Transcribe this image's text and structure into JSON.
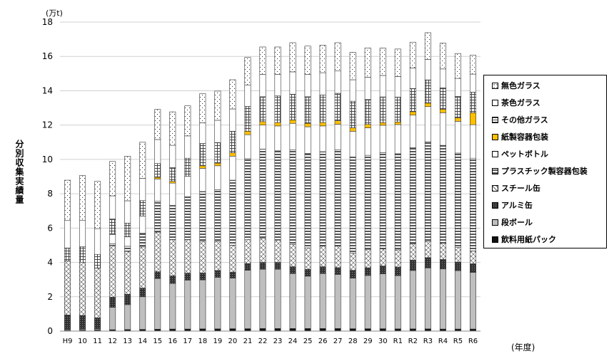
{
  "chart_data": {
    "type": "bar",
    "stacked": true,
    "unit": "(万t)",
    "ylabel": "分別収集実績量",
    "xlabel": "(年度)",
    "ylim": [
      0,
      18
    ],
    "yticks": [
      0,
      2,
      4,
      6,
      8,
      10,
      12,
      14,
      16,
      18
    ],
    "grid": true,
    "legend_position": "right",
    "categories": [
      "H9",
      "10",
      "11",
      "12",
      "13",
      "14",
      "15",
      "16",
      "17",
      "18",
      "19",
      "20",
      "21",
      "22",
      "23",
      "24",
      "25",
      "26",
      "27",
      "28",
      "29",
      "30",
      "R1",
      "R2",
      "R3",
      "R4",
      "R5",
      "R6"
    ],
    "series": [
      {
        "name": "飲料用紙パック",
        "color": "#111111",
        "pattern": "solid",
        "values": [
          0.04,
          0.05,
          0.06,
          0.08,
          0.09,
          0.1,
          0.11,
          0.12,
          0.12,
          0.13,
          0.13,
          0.14,
          0.14,
          0.15,
          0.15,
          0.15,
          0.15,
          0.15,
          0.15,
          0.14,
          0.14,
          0.14,
          0.13,
          0.13,
          0.13,
          0.12,
          0.12,
          0.12
        ]
      },
      {
        "name": "段ボール",
        "color": "#bfbfbf",
        "pattern": "solid",
        "values": [
          0.05,
          0.06,
          0.06,
          1.3,
          1.45,
          1.9,
          2.95,
          2.65,
          2.85,
          2.85,
          3.0,
          2.95,
          3.4,
          3.45,
          3.45,
          3.2,
          3.05,
          3.2,
          3.15,
          2.95,
          3.1,
          3.2,
          3.1,
          3.4,
          3.55,
          3.5,
          3.4,
          3.3
        ]
      },
      {
        "name": "アルミ缶",
        "color": "#444444",
        "pattern": "dots",
        "values": [
          0.85,
          0.8,
          0.65,
          0.6,
          0.6,
          0.5,
          0.4,
          0.45,
          0.4,
          0.4,
          0.4,
          0.35,
          0.4,
          0.4,
          0.4,
          0.4,
          0.4,
          0.4,
          0.4,
          0.45,
          0.45,
          0.45,
          0.5,
          0.6,
          0.6,
          0.55,
          0.5,
          0.5
        ]
      },
      {
        "name": "スチール缶",
        "color": "#ffffff",
        "pattern": "cross",
        "values": [
          3.15,
          3.1,
          2.9,
          3.0,
          2.5,
          2.4,
          2.3,
          2.1,
          1.95,
          1.85,
          1.7,
          1.55,
          1.4,
          1.4,
          1.3,
          1.3,
          1.25,
          1.2,
          1.25,
          1.0,
          1.05,
          1.0,
          1.0,
          0.95,
          0.95,
          0.95,
          0.85,
          0.75
        ]
      },
      {
        "name": "プラスチック製容器包装",
        "color": "#ffffff",
        "pattern": "hbars",
        "values": [
          0.0,
          0.0,
          0.0,
          0.1,
          0.3,
          0.8,
          1.8,
          2.0,
          2.5,
          2.9,
          3.0,
          3.8,
          4.7,
          5.2,
          5.2,
          5.5,
          5.5,
          5.5,
          5.6,
          5.6,
          5.5,
          5.6,
          5.6,
          5.6,
          5.8,
          5.7,
          5.5,
          5.4
        ]
      },
      {
        "name": "ペットボトル",
        "color": "#ffffff",
        "pattern": "solid",
        "values": [
          0.0,
          0.0,
          0.0,
          0.55,
          0.55,
          1.0,
          1.3,
          1.3,
          1.2,
          1.35,
          1.4,
          1.4,
          1.4,
          1.4,
          1.45,
          1.55,
          1.55,
          1.5,
          1.5,
          1.5,
          1.6,
          1.6,
          1.7,
          1.9,
          2.05,
          1.9,
          1.85,
          1.95
        ]
      },
      {
        "name": "紙製容器包装",
        "color": "#ffc000",
        "pattern": "solid",
        "values": [
          0.0,
          0.0,
          0.0,
          0.0,
          0.0,
          0.0,
          0.1,
          0.1,
          0.0,
          0.15,
          0.15,
          0.2,
          0.2,
          0.2,
          0.2,
          0.2,
          0.2,
          0.2,
          0.2,
          0.2,
          0.2,
          0.15,
          0.15,
          0.2,
          0.2,
          0.2,
          0.2,
          0.7
        ]
      },
      {
        "name": "その他ガラス",
        "color": "#ffffff",
        "pattern": "grid",
        "values": [
          0.75,
          0.9,
          0.8,
          0.9,
          0.8,
          0.9,
          0.8,
          0.8,
          1.05,
          1.3,
          1.2,
          1.25,
          1.45,
          1.45,
          1.55,
          1.5,
          1.55,
          1.6,
          1.6,
          1.55,
          1.45,
          1.5,
          1.45,
          1.35,
          1.35,
          1.25,
          1.25,
          1.2
        ]
      },
      {
        "name": "茶色ガラス",
        "color": "#ffffff",
        "pattern": "solid",
        "values": [
          1.6,
          1.55,
          1.5,
          1.35,
          1.3,
          1.3,
          1.4,
          1.3,
          1.3,
          1.2,
          1.3,
          1.3,
          1.25,
          1.3,
          1.25,
          1.3,
          1.3,
          1.3,
          1.3,
          1.25,
          1.3,
          1.25,
          1.2,
          1.2,
          1.2,
          1.1,
          1.05,
          1.05
        ]
      },
      {
        "name": "無色ガラス",
        "color": "#ffffff",
        "pattern": "sparse",
        "values": [
          2.35,
          2.6,
          2.75,
          2.0,
          2.6,
          2.1,
          1.75,
          1.95,
          1.75,
          1.7,
          1.7,
          1.7,
          1.6,
          1.6,
          1.6,
          1.7,
          1.65,
          1.6,
          1.65,
          1.6,
          1.7,
          1.6,
          1.6,
          1.5,
          1.55,
          1.5,
          1.45,
          1.1
        ]
      }
    ]
  },
  "legend": [
    {
      "label": "無色ガラス",
      "pattern": "sparse",
      "color": "#ffffff"
    },
    {
      "label": "茶色ガラス",
      "pattern": "solid",
      "color": "#ffffff"
    },
    {
      "label": "その他ガラス",
      "pattern": "grid",
      "color": "#ffffff"
    },
    {
      "label": "紙製容器包装",
      "pattern": "solid",
      "color": "#ffc000"
    },
    {
      "label": "ペットボトル",
      "pattern": "solid",
      "color": "#ffffff"
    },
    {
      "label": "プラスチック製容器包装",
      "pattern": "hbars",
      "color": "#ffffff"
    },
    {
      "label": "スチール缶",
      "pattern": "cross",
      "color": "#ffffff"
    },
    {
      "label": "アルミ缶",
      "pattern": "dots",
      "color": "#444444"
    },
    {
      "label": "段ボール",
      "pattern": "solid",
      "color": "#bfbfbf"
    },
    {
      "label": "飲料用紙パック",
      "pattern": "solid",
      "color": "#111111"
    }
  ]
}
